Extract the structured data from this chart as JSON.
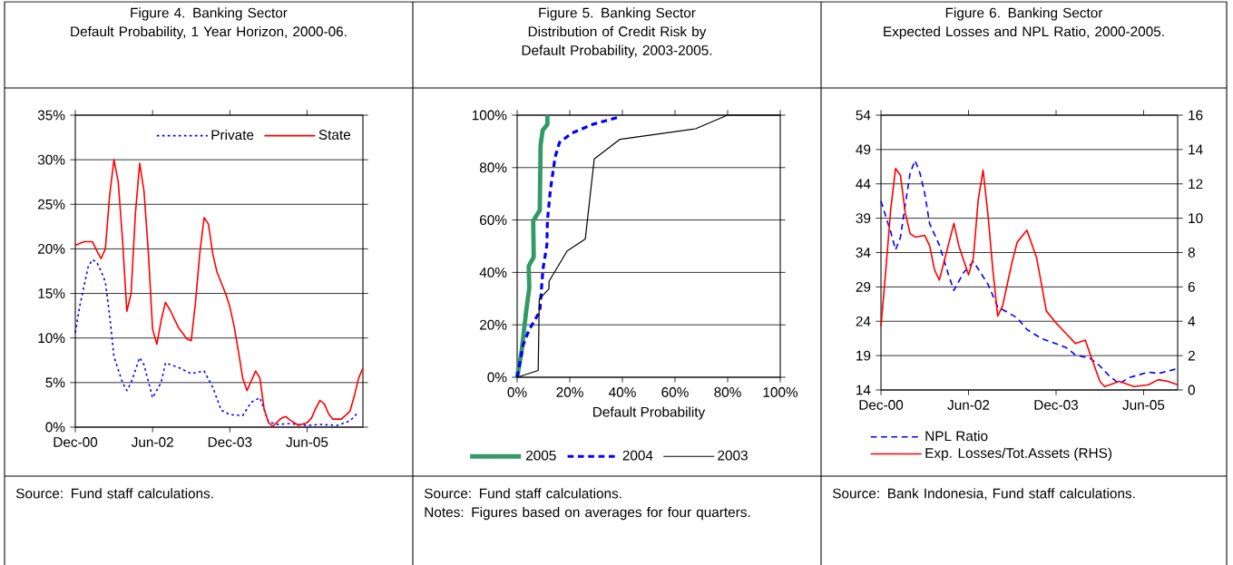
{
  "chart_data": [
    {
      "type": "line",
      "title": "Figure 4. Banking Sector",
      "subtitle": "Default Probability, 1 Year Horizon, 2000-06.",
      "xlim": [
        "2000-12",
        "2006-07"
      ],
      "xticks": [
        {
          "value": "2000-12",
          "label": "Dec-00"
        },
        {
          "value": "2002-06",
          "label": "Jun-02"
        },
        {
          "value": "2003-12",
          "label": "Dec-03"
        },
        {
          "value": "2005-06",
          "label": "Jun-05"
        }
      ],
      "ylim": [
        0,
        35
      ],
      "yticks": [
        {
          "value": 0,
          "label": "0%"
        },
        {
          "value": 5,
          "label": "5%"
        },
        {
          "value": 10,
          "label": "10%"
        },
        {
          "value": 15,
          "label": "15%"
        },
        {
          "value": 20,
          "label": "20%"
        },
        {
          "value": 25,
          "label": "25%"
        },
        {
          "value": 30,
          "label": "30%"
        },
        {
          "value": 35,
          "label": "35%"
        }
      ],
      "grid": "y",
      "legend": "top right",
      "series": [
        {
          "name": "Private",
          "color": "#0000ff",
          "line_style": "dotted",
          "x": [
            "2000-12",
            "2001-01",
            "2001-03",
            "2001-04",
            "2001-05",
            "2001-06",
            "2001-07",
            "2001-08",
            "2001-09",
            "2001-11",
            "2001-12",
            "2002-01",
            "2002-03",
            "2002-04",
            "2002-06",
            "2002-08",
            "2002-09",
            "2002-12",
            "2003-03",
            "2003-06",
            "2003-08",
            "2003-10",
            "2003-12",
            "2004-03",
            "2004-05",
            "2004-07",
            "2004-09",
            "2004-11",
            "2005-02",
            "2005-06",
            "2005-09",
            "2006-01",
            "2006-04",
            "2006-06"
          ],
          "values": [
            10.6,
            13.5,
            18.0,
            18.8,
            18.5,
            17.5,
            16.3,
            12.5,
            7.9,
            5.0,
            4.1,
            5.0,
            7.8,
            7.0,
            3.3,
            5.0,
            7.2,
            6.7,
            6.0,
            6.3,
            4.5,
            1.9,
            1.4,
            1.3,
            2.8,
            3.3,
            0.6,
            0.3,
            0.4,
            0.2,
            0.3,
            0.2,
            0.7,
            1.7
          ]
        },
        {
          "name": "State",
          "color": "#ff0000",
          "line_style": "solid",
          "x": [
            "2000-12",
            "2001-02",
            "2001-04",
            "2001-05",
            "2001-06",
            "2001-07",
            "2001-08",
            "2001-09",
            "2001-10",
            "2001-11",
            "2001-12",
            "2002-01",
            "2002-02",
            "2002-03",
            "2002-04",
            "2002-05",
            "2002-06",
            "2002-07",
            "2002-08",
            "2002-09",
            "2002-10",
            "2002-12",
            "2003-02",
            "2003-03",
            "2003-04",
            "2003-05",
            "2003-06",
            "2003-07",
            "2003-08",
            "2003-09",
            "2003-11",
            "2003-12",
            "2004-01",
            "2004-02",
            "2004-03",
            "2004-04",
            "2004-05",
            "2004-06",
            "2004-07",
            "2004-08",
            "2004-09",
            "2004-10",
            "2004-12",
            "2005-01",
            "2005-02",
            "2005-04",
            "2005-06",
            "2005-07",
            "2005-08",
            "2005-09",
            "2005-10",
            "2005-11",
            "2005-12",
            "2006-02",
            "2006-04",
            "2006-05",
            "2006-06",
            "2006-07"
          ],
          "values": [
            20.4,
            20.8,
            20.8,
            19.8,
            18.9,
            20.0,
            26.0,
            30.0,
            27.5,
            21.0,
            13.0,
            15.0,
            24.0,
            29.6,
            26.5,
            19.7,
            11.0,
            9.3,
            12.0,
            14.0,
            13.2,
            11.2,
            9.9,
            9.7,
            14.0,
            19.5,
            23.5,
            22.8,
            19.5,
            17.4,
            15.0,
            13.5,
            11.3,
            8.5,
            5.5,
            4.1,
            5.2,
            6.3,
            5.5,
            2.0,
            0.5,
            0.1,
            1.0,
            1.2,
            0.8,
            0.2,
            0.5,
            1.0,
            2.1,
            3.0,
            2.6,
            1.5,
            0.9,
            0.9,
            1.8,
            3.5,
            5.5,
            6.6
          ]
        }
      ],
      "annotations": [
        "Source: Fund staff calculations."
      ]
    },
    {
      "type": "line",
      "title": "Figure 5. Banking Sector",
      "subtitle": "Distribution of Credit Risk by Default Probability, 2003-2005.",
      "xlabel": "Default Probability",
      "xlim": [
        0,
        100
      ],
      "xticks": [
        {
          "value": 0,
          "label": "0%"
        },
        {
          "value": 20,
          "label": "20%"
        },
        {
          "value": 40,
          "label": "40%"
        },
        {
          "value": 60,
          "label": "60%"
        },
        {
          "value": 80,
          "label": "80%"
        },
        {
          "value": 100,
          "label": "100%"
        }
      ],
      "ylim": [
        0,
        100
      ],
      "yticks": [
        {
          "value": 0,
          "label": "0%"
        },
        {
          "value": 20,
          "label": "20%"
        },
        {
          "value": 40,
          "label": "40%"
        },
        {
          "value": 60,
          "label": "60%"
        },
        {
          "value": 80,
          "label": "80%"
        },
        {
          "value": 100,
          "label": "100%"
        }
      ],
      "grid": "y",
      "legend": "bottom",
      "series": [
        {
          "name": "2005",
          "color": "#339966",
          "line_style": "solid",
          "x": [
            0,
            1.7,
            3.4,
            4.6,
            4.4,
            6.3,
            6.1,
            8.6,
            8.9,
            9.7,
            11.5,
            11.5
          ],
          "values": [
            0,
            10,
            25,
            34,
            42.4,
            45.9,
            59.7,
            63.7,
            88.5,
            94.2,
            96.5,
            100
          ]
        },
        {
          "name": "2004",
          "color": "#0000ff",
          "line_style": "dashed",
          "x": [
            0,
            2.3,
            4.6,
            8.6,
            9.8,
            11.3,
            11.5,
            12.6,
            14.4,
            16.1,
            20.7,
            28.7,
            39.1
          ],
          "values": [
            0,
            12.4,
            18.2,
            25.1,
            41.2,
            50.5,
            59.7,
            71.2,
            83.9,
            89.6,
            93.1,
            96.5,
            99.4
          ]
        },
        {
          "name": "2003",
          "color": "#000000",
          "line_style": "solid",
          "x": [
            0,
            8,
            8.4,
            12.1,
            12.1,
            19,
            25.9,
            29.3,
            39.1,
            67.8,
            79.9,
            100
          ],
          "values": [
            0,
            2.6,
            29.7,
            33.8,
            36.6,
            48.2,
            52.8,
            83.3,
            90.8,
            94.8,
            100,
            100
          ]
        }
      ],
      "annotations": [
        "Source: Fund staff calculations.",
        "Notes: Figures based on averages for four quarters."
      ]
    },
    {
      "type": "line",
      "title": "Figure 6. Banking Sector",
      "subtitle": "Expected Losses and NPL Ratio, 2000-2005.",
      "xlim": [
        "2000-12",
        "2006-01"
      ],
      "xticks": [
        {
          "value": "2000-12",
          "label": "Dec-00"
        },
        {
          "value": "2002-06",
          "label": "Jun-02"
        },
        {
          "value": "2003-12",
          "label": "Dec-03"
        },
        {
          "value": "2005-06",
          "label": "Jun-05"
        }
      ],
      "ylim": [
        14,
        54
      ],
      "yticks": [
        14,
        19,
        24,
        29,
        34,
        39,
        44,
        49,
        54
      ],
      "y2lim": [
        0,
        16
      ],
      "y2ticks": [
        0,
        2,
        4,
        6,
        8,
        10,
        12,
        14,
        16
      ],
      "grid": "y",
      "legend": "bottom left",
      "series": [
        {
          "name": "NPL Ratio",
          "color": "#0000ff",
          "line_style": "dashed",
          "x": [
            "2000-12",
            "2001-02",
            "2001-03",
            "2001-04",
            "2001-05",
            "2001-06",
            "2001-07",
            "2001-08",
            "2001-09",
            "2001-10",
            "2001-12",
            "2002-02",
            "2002-03",
            "2002-05",
            "2002-07",
            "2002-10",
            "2002-12",
            "2003-04",
            "2003-06",
            "2003-09",
            "2004-02",
            "2004-04",
            "2004-07",
            "2004-09",
            "2004-11",
            "2005-01",
            "2005-03",
            "2005-07",
            "2005-09",
            "2006-01"
          ],
          "values": [
            41.5,
            37.0,
            34.4,
            36.2,
            41.0,
            45.6,
            47.4,
            45.6,
            42.6,
            38.2,
            35.1,
            30.5,
            28.5,
            31.1,
            32.7,
            29.4,
            26.1,
            24.5,
            22.8,
            21.5,
            20.2,
            19.1,
            18.6,
            17.5,
            16.0,
            14.9,
            15.8,
            16.6,
            16.4,
            17.1
          ]
        },
        {
          "name": "Exp. Losses/Tot.Assets (RHS)",
          "color": "#ff0000",
          "line_style": "solid",
          "axis": "y2",
          "x": [
            "2000-12",
            "2001-01",
            "2001-02",
            "2001-03",
            "2001-04",
            "2001-05",
            "2001-06",
            "2001-07",
            "2001-09",
            "2001-10",
            "2001-11",
            "2001-12",
            "2002-02",
            "2002-03",
            "2002-04",
            "2002-06",
            "2002-07",
            "2002-08",
            "2002-09",
            "2002-10",
            "2002-11",
            "2002-12",
            "2003-01",
            "2003-03",
            "2003-04",
            "2003-06",
            "2003-08",
            "2003-10",
            "2003-12",
            "2004-02",
            "2004-04",
            "2004-06",
            "2004-07",
            "2004-09",
            "2004-10",
            "2004-12",
            "2005-01",
            "2005-04",
            "2005-07",
            "2005-09",
            "2005-11",
            "2006-01"
          ],
          "values": [
            3.7,
            7.0,
            10.5,
            12.9,
            12.5,
            10.3,
            9.1,
            8.9,
            9.0,
            8.4,
            7.0,
            6.4,
            8.6,
            9.7,
            8.4,
            6.7,
            7.7,
            11.1,
            12.8,
            10.2,
            7.0,
            4.3,
            4.9,
            7.5,
            8.6,
            9.3,
            7.7,
            4.6,
            3.9,
            3.3,
            2.7,
            2.9,
            2.1,
            0.5,
            0.2,
            0.4,
            0.5,
            0.2,
            0.3,
            0.6,
            0.5,
            0.3
          ]
        }
      ],
      "annotations": [
        "Source: Bank Indonesia, Fund staff calculations."
      ]
    }
  ]
}
